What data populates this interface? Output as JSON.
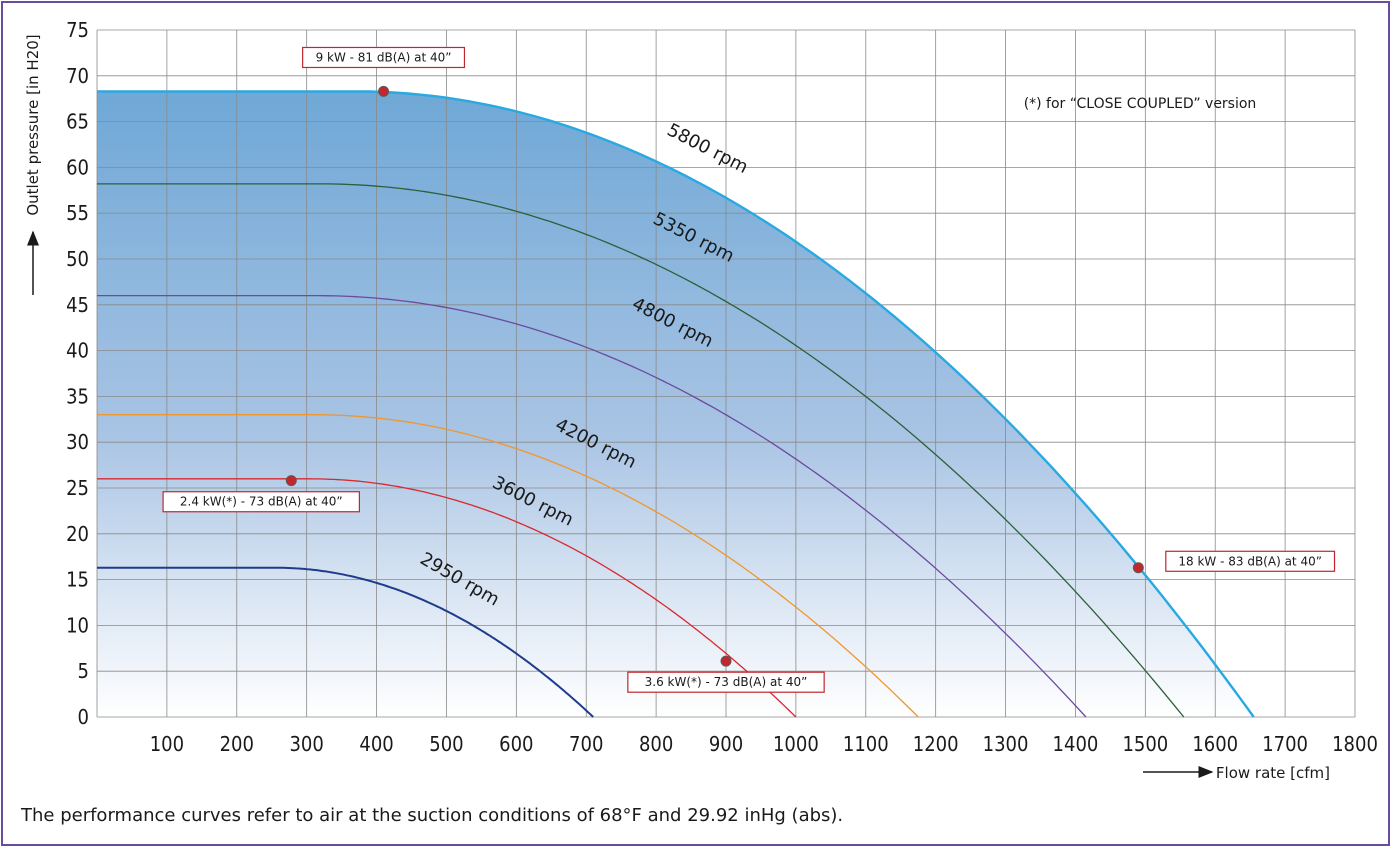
{
  "chart_data": {
    "type": "line",
    "title": "",
    "xlabel": "Flow rate [cfm]",
    "ylabel": "Outlet pressure [in H20]",
    "xlim": [
      0,
      1800
    ],
    "ylim": [
      0,
      75
    ],
    "x_ticks": [
      0,
      100,
      200,
      300,
      400,
      500,
      600,
      700,
      800,
      900,
      1000,
      1100,
      1200,
      1300,
      1400,
      1500,
      1600,
      1700,
      1800
    ],
    "y_ticks": [
      0,
      5,
      10,
      15,
      20,
      25,
      30,
      35,
      40,
      45,
      50,
      55,
      60,
      65,
      70,
      75
    ],
    "grid": true,
    "filled_envelope": {
      "series": "5800 rpm",
      "color_top": "#6fa8d6",
      "color_bottom": "#ffffff"
    },
    "series": [
      {
        "name": "5800 rpm",
        "color": "#29a9e1",
        "flat_pressure": 68.3,
        "knee_flow": 370,
        "zero_flow": 1655,
        "stroke": 2.4
      },
      {
        "name": "5350 rpm",
        "color": "#2d5f3a",
        "flat_pressure": 58.2,
        "knee_flow": 320,
        "zero_flow": 1555,
        "stroke": 1.3
      },
      {
        "name": "4800 rpm",
        "color": "#6b4aa0",
        "flat_pressure": 46.0,
        "knee_flow": 315,
        "zero_flow": 1415,
        "stroke": 1.3
      },
      {
        "name": "4200 rpm",
        "color": "#f0962e",
        "flat_pressure": 33.0,
        "knee_flow": 310,
        "zero_flow": 1175,
        "stroke": 1.3
      },
      {
        "name": "3600 rpm",
        "color": "#d9282f",
        "flat_pressure": 26.0,
        "knee_flow": 305,
        "zero_flow": 1000,
        "stroke": 1.3
      },
      {
        "name": "2950 rpm",
        "color": "#1f3c8c",
        "flat_pressure": 16.3,
        "knee_flow": 255,
        "zero_flow": 710,
        "stroke": 2.0
      }
    ],
    "series_labels": [
      {
        "text": "5800 rpm",
        "x": 870,
        "y": 61.5,
        "angle": 27
      },
      {
        "text": "5350 rpm",
        "x": 850,
        "y": 51.8,
        "angle": 27
      },
      {
        "text": "4800 rpm",
        "x": 820,
        "y": 42.5,
        "angle": 27
      },
      {
        "text": "4200 rpm",
        "x": 710,
        "y": 29.3,
        "angle": 27
      },
      {
        "text": "3600 rpm",
        "x": 620,
        "y": 23.0,
        "angle": 27
      },
      {
        "text": "2950 rpm",
        "x": 515,
        "y": 14.5,
        "angle": 30
      }
    ],
    "operating_points": [
      {
        "x": 410,
        "y": 68.3,
        "label": "9 kW - 81 dB(A) at 40”",
        "label_x": 410,
        "label_y": 72.0
      },
      {
        "x": 278,
        "y": 25.8,
        "label": "2.4 kW(*) - 73 dB(A) at 40”",
        "label_x": 235,
        "label_y": 23.5
      },
      {
        "x": 900,
        "y": 6.1,
        "label": "3.6 kW(*) - 73 dB(A) at 40”",
        "label_x": 900,
        "label_y": 3.8
      },
      {
        "x": 1490,
        "y": 16.3,
        "label": "18 kW - 83 dB(A) at 40”",
        "label_x": 1650,
        "label_y": 17.0
      }
    ],
    "note": "(*) for “CLOSE COUPLED” version"
  },
  "footnote": "The performance curves refer to air at the suction conditions of 68°F and 29.92 inHg (abs)."
}
